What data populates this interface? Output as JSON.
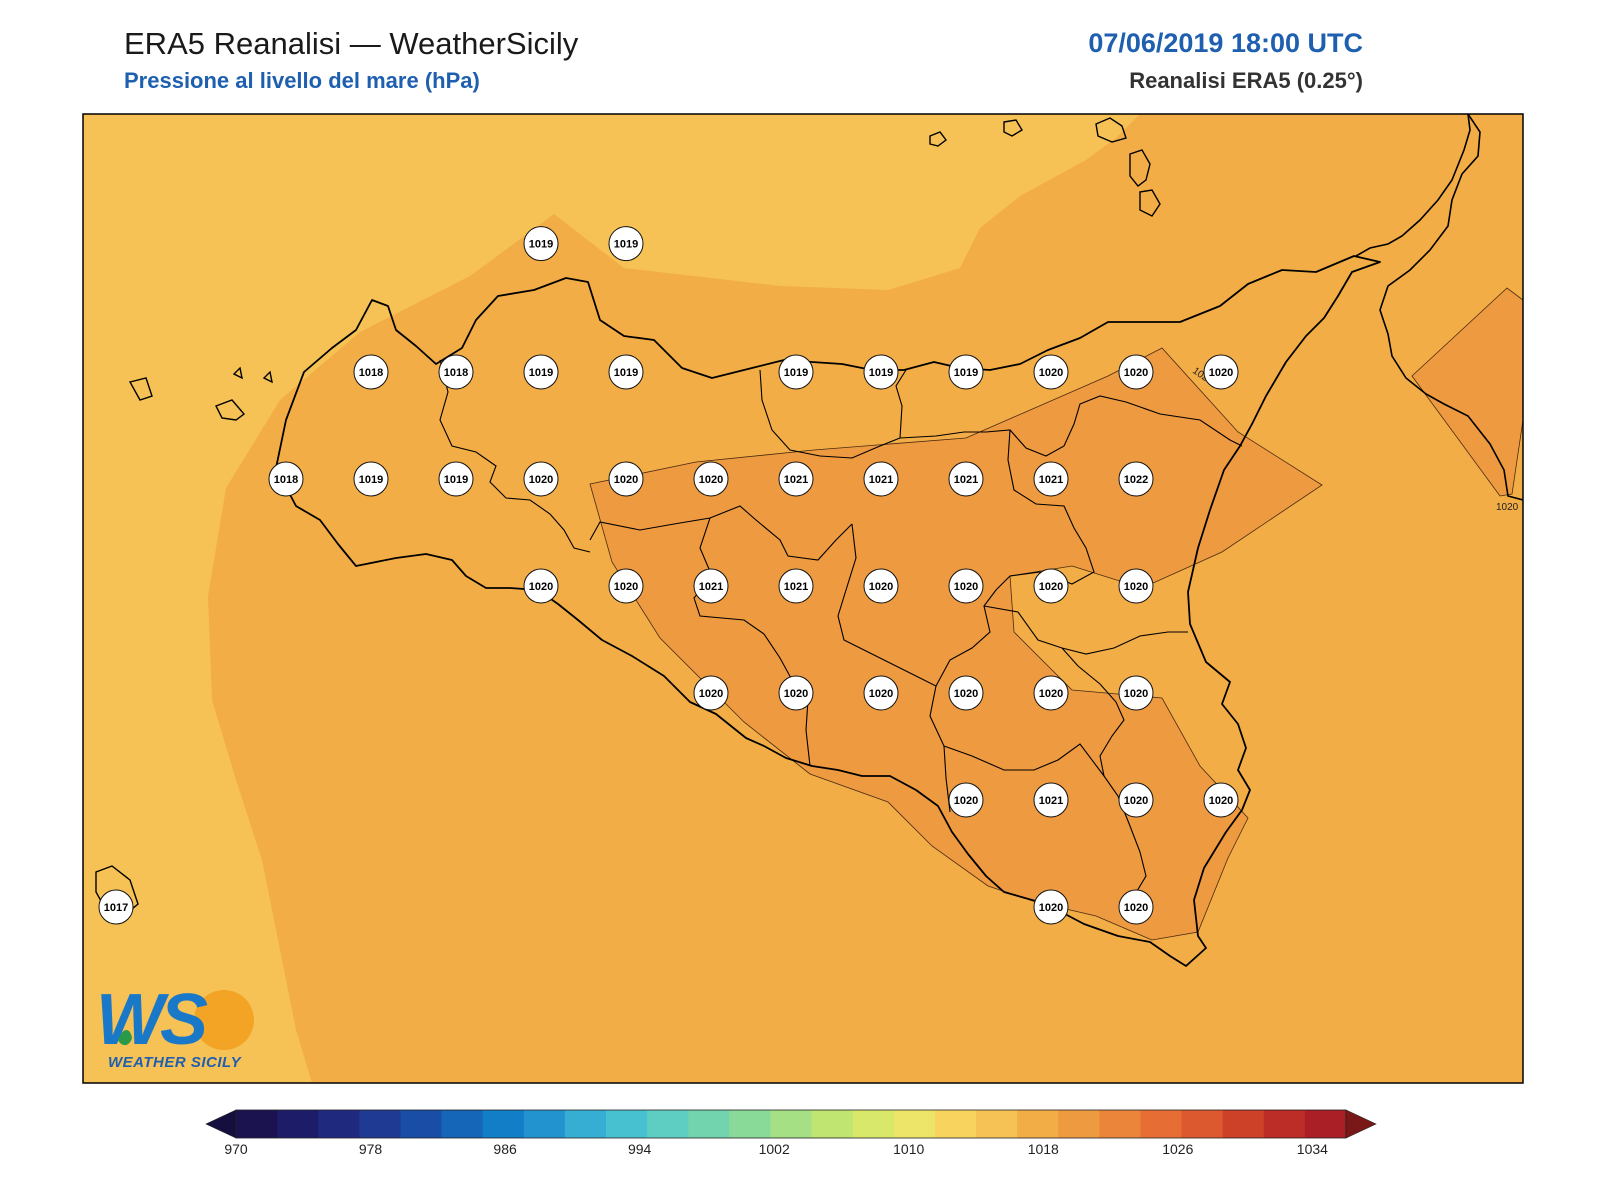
{
  "header": {
    "title": "ERA5 Reanalisi — WeatherSicily",
    "subtitle": "Pressione al livello del mare (hPa)",
    "datetime": "07/06/2019 18:00 UTC",
    "source": "Reanalisi ERA5 (0.25°)"
  },
  "colors": {
    "field_1016": "#f6c255",
    "field_1018": "#f2ad47",
    "field_1020": "#ee9a40",
    "coast": "#000000",
    "title_blue": "#1f5fb0"
  },
  "isoline_labels": [
    "1020",
    "1020"
  ],
  "logo": {
    "mark": "WS",
    "text": "WEATHER SICILY"
  },
  "chart_data": {
    "type": "heatmap",
    "variable": "Pressione al livello del mare (hPa)",
    "stations": [
      {
        "lon": 13.5,
        "lat": 38.6,
        "value": 1019
      },
      {
        "lon": 14.0,
        "lat": 38.6,
        "value": 1019
      },
      {
        "lon": 12.5,
        "lat": 38.0,
        "value": 1018
      },
      {
        "lon": 13.0,
        "lat": 38.0,
        "value": 1018
      },
      {
        "lon": 13.5,
        "lat": 38.0,
        "value": 1019
      },
      {
        "lon": 14.0,
        "lat": 38.0,
        "value": 1019
      },
      {
        "lon": 15.0,
        "lat": 38.0,
        "value": 1019
      },
      {
        "lon": 15.5,
        "lat": 38.0,
        "value": 1019
      },
      {
        "lon": 16.0,
        "lat": 38.0,
        "value": 1019
      },
      {
        "lon": 16.5,
        "lat": 38.0,
        "value": 1020
      },
      {
        "lon": 17.0,
        "lat": 38.0,
        "value": 1020
      },
      {
        "lon": 17.5,
        "lat": 38.0,
        "value": 1020
      },
      {
        "lon": 12.0,
        "lat": 37.5,
        "value": 1018
      },
      {
        "lon": 12.5,
        "lat": 37.5,
        "value": 1019
      },
      {
        "lon": 13.0,
        "lat": 37.5,
        "value": 1019
      },
      {
        "lon": 13.5,
        "lat": 37.5,
        "value": 1020
      },
      {
        "lon": 14.0,
        "lat": 37.5,
        "value": 1020
      },
      {
        "lon": 14.5,
        "lat": 37.5,
        "value": 1020
      },
      {
        "lon": 15.0,
        "lat": 37.5,
        "value": 1021
      },
      {
        "lon": 15.5,
        "lat": 37.5,
        "value": 1021
      },
      {
        "lon": 16.0,
        "lat": 37.5,
        "value": 1021
      },
      {
        "lon": 16.5,
        "lat": 37.5,
        "value": 1021
      },
      {
        "lon": 17.0,
        "lat": 37.5,
        "value": 1022
      },
      {
        "lon": 13.5,
        "lat": 37.0,
        "value": 1020
      },
      {
        "lon": 14.0,
        "lat": 37.0,
        "value": 1020
      },
      {
        "lon": 14.5,
        "lat": 37.0,
        "value": 1021
      },
      {
        "lon": 15.0,
        "lat": 37.0,
        "value": 1021
      },
      {
        "lon": 15.5,
        "lat": 37.0,
        "value": 1020
      },
      {
        "lon": 16.0,
        "lat": 37.0,
        "value": 1020
      },
      {
        "lon": 16.5,
        "lat": 37.0,
        "value": 1020
      },
      {
        "lon": 17.0,
        "lat": 37.0,
        "value": 1020
      },
      {
        "lon": 14.5,
        "lat": 36.5,
        "value": 1020
      },
      {
        "lon": 15.0,
        "lat": 36.5,
        "value": 1020
      },
      {
        "lon": 15.5,
        "lat": 36.5,
        "value": 1020
      },
      {
        "lon": 16.0,
        "lat": 36.5,
        "value": 1020
      },
      {
        "lon": 16.5,
        "lat": 36.5,
        "value": 1020
      },
      {
        "lon": 17.0,
        "lat": 36.5,
        "value": 1020
      },
      {
        "lon": 16.0,
        "lat": 36.0,
        "value": 1020
      },
      {
        "lon": 16.5,
        "lat": 36.0,
        "value": 1021
      },
      {
        "lon": 17.0,
        "lat": 36.0,
        "value": 1020
      },
      {
        "lon": 17.5,
        "lat": 36.0,
        "value": 1020
      },
      {
        "lon": 16.5,
        "lat": 35.5,
        "value": 1020
      },
      {
        "lon": 17.0,
        "lat": 35.5,
        "value": 1020
      },
      {
        "lon": 11.0,
        "lat": 35.5,
        "value": 1017
      }
    ],
    "colorbar": {
      "ticks": [
        970,
        978,
        986,
        994,
        1002,
        1010,
        1018,
        1026,
        1034
      ],
      "min": 970,
      "max": 1036,
      "step": 2,
      "extend": "both",
      "colors": [
        "#1b1350",
        "#1d1c68",
        "#1f2a7e",
        "#1f3a93",
        "#1a4ea6",
        "#1566b8",
        "#137ec8",
        "#2393cf",
        "#36aed3",
        "#47c0cf",
        "#5ecdc2",
        "#72d4ae",
        "#89da98",
        "#a6e084",
        "#c0e571",
        "#d7e86a",
        "#ede56a",
        "#f8d35e",
        "#f6c255",
        "#f2ad47",
        "#ee9a40",
        "#eb853a",
        "#e66e34",
        "#dc582e",
        "#cd4129",
        "#bd2d27",
        "#aa1f25"
      ]
    }
  }
}
